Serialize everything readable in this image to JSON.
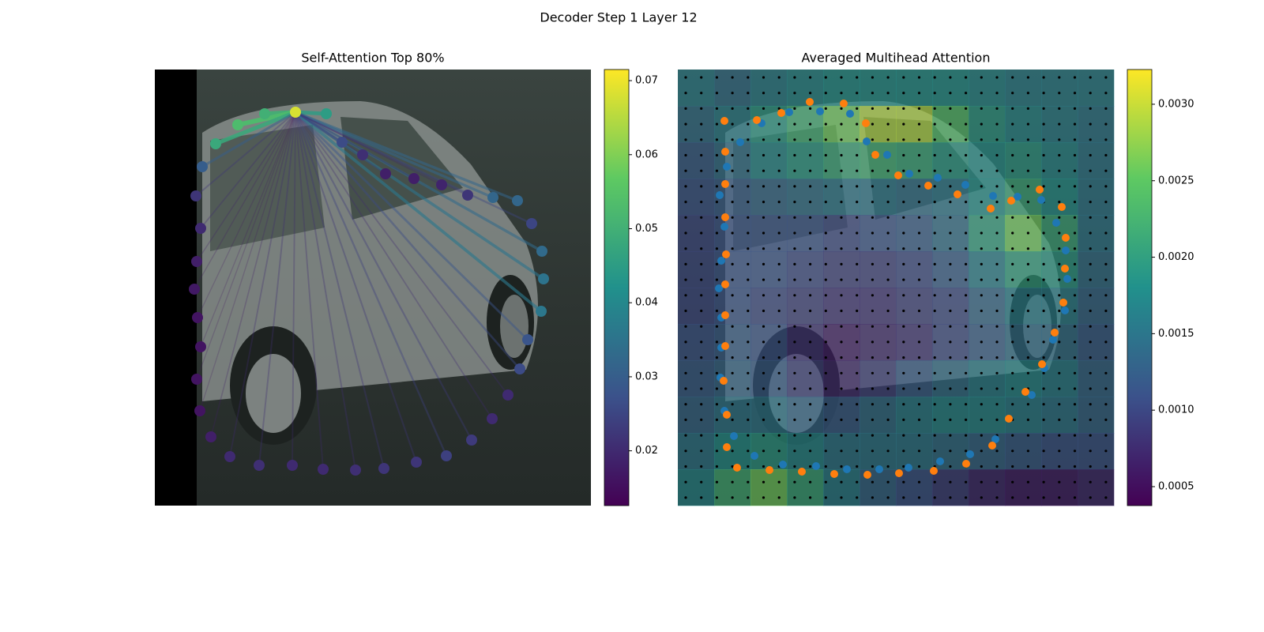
{
  "title": "Decoder Step 1 Layer 12",
  "chart_data": [
    {
      "type": "scatter",
      "title": "Self-Attention Top 80%",
      "xlim": [
        0,
        552
      ],
      "ylim": [
        552,
        0
      ],
      "x": [
        178,
        217,
        139,
        105,
        77,
        60,
        52,
        58,
        53,
        50,
        54,
        58,
        53,
        57,
        71,
        95,
        132,
        174,
        213,
        254,
        290,
        331,
        369,
        401,
        427,
        447,
        462,
        472,
        489,
        492,
        490,
        477,
        459,
        428,
        396,
        363,
        328,
        292,
        263,
        237
      ],
      "values": [
        498,
        496,
        496,
        482,
        458,
        429,
        392,
        351,
        309,
        274,
        238,
        201,
        160,
        120,
        87,
        62,
        51,
        51,
        46,
        45,
        47,
        55,
        63,
        83,
        110,
        140,
        173,
        210,
        246,
        287,
        322,
        357,
        386,
        390,
        393,
        406,
        414,
        420,
        444,
        460
      ],
      "attention": [
        0.068,
        0.045,
        0.05,
        0.053,
        0.048,
        0.03,
        0.022,
        0.02,
        0.018,
        0.017,
        0.016,
        0.016,
        0.016,
        0.016,
        0.018,
        0.02,
        0.021,
        0.02,
        0.02,
        0.021,
        0.022,
        0.022,
        0.024,
        0.023,
        0.02,
        0.02,
        0.026,
        0.028,
        0.036,
        0.035,
        0.033,
        0.025,
        0.032,
        0.032,
        0.022,
        0.019,
        0.018,
        0.018,
        0.021,
        0.026
      ],
      "clim": [
        0.0126,
        0.0715
      ],
      "cticks": [
        0.02,
        0.03,
        0.04,
        0.05,
        0.06,
        0.07
      ]
    },
    {
      "type": "heatmap",
      "title": "Averaged Multihead Attention",
      "xlim": [
        0,
        552
      ],
      "ylim": [
        552,
        0
      ],
      "z": [
        [
          0.0016,
          0.0014,
          0.0016,
          0.0017,
          0.0018,
          0.0018,
          0.0018,
          0.0018,
          0.0017,
          0.0016,
          0.0016,
          0.0016
        ],
        [
          0.0014,
          0.0016,
          0.0019,
          0.0022,
          0.0026,
          0.0029,
          0.0029,
          0.0024,
          0.0019,
          0.0017,
          0.0016,
          0.0015
        ],
        [
          0.0012,
          0.0014,
          0.0017,
          0.0019,
          0.0021,
          0.0022,
          0.0021,
          0.0019,
          0.0018,
          0.0019,
          0.0017,
          0.0015
        ],
        [
          0.0011,
          0.0012,
          0.0013,
          0.0014,
          0.0015,
          0.0015,
          0.0014,
          0.0015,
          0.0018,
          0.0021,
          0.0018,
          0.0015
        ],
        [
          0.001,
          0.0011,
          0.0011,
          0.0011,
          0.001,
          0.0011,
          0.0012,
          0.0014,
          0.002,
          0.0026,
          0.0021,
          0.0015
        ],
        [
          0.001,
          0.0011,
          0.0011,
          0.001,
          0.0009,
          0.0009,
          0.001,
          0.0012,
          0.0016,
          0.002,
          0.0019,
          0.0014
        ],
        [
          0.001,
          0.0011,
          0.001,
          0.0009,
          0.0008,
          0.0008,
          0.0009,
          0.001,
          0.0013,
          0.0016,
          0.0016,
          0.0013
        ],
        [
          0.0011,
          0.0012,
          0.0011,
          0.0008,
          0.0006,
          0.0007,
          0.0008,
          0.001,
          0.0012,
          0.0014,
          0.0014,
          0.0012
        ],
        [
          0.0012,
          0.0013,
          0.0012,
          0.0009,
          0.0007,
          0.0009,
          0.0012,
          0.0014,
          0.0016,
          0.0017,
          0.0016,
          0.0013
        ],
        [
          0.0013,
          0.0015,
          0.0015,
          0.0013,
          0.0012,
          0.0014,
          0.0016,
          0.0017,
          0.0017,
          0.0016,
          0.0015,
          0.0013
        ],
        [
          0.0015,
          0.0018,
          0.0019,
          0.0017,
          0.0015,
          0.0015,
          0.0015,
          0.0014,
          0.0013,
          0.0012,
          0.0011,
          0.0011
        ],
        [
          0.0017,
          0.0022,
          0.0026,
          0.0021,
          0.0016,
          0.0013,
          0.0011,
          0.0009,
          0.0007,
          0.0006,
          0.0006,
          0.0007
        ]
      ],
      "clim": [
        0.000376,
        0.003227
      ],
      "cticks": [
        0.0005,
        {
          "value": 0.001,
          "label": "0.0010"
        },
        0.0015,
        {
          "value": 0.002,
          "label": "0.0020"
        },
        0.0025,
        {
          "value": 0.003,
          "label": "0.0030"
        }
      ],
      "series": [
        {
          "color": "#1f77b4",
          "x": [
            59,
            71,
            97,
            133,
            175,
            214,
            255,
            292,
            332,
            370,
            402,
            448,
            464,
            475,
            490,
            493,
            491,
            479,
            460,
            430,
            399,
            364,
            329,
            293,
            265,
            239,
            218,
            180,
            141,
            106,
            79,
            62,
            53,
            59,
            55,
            52,
            55,
            54,
            55
          ],
          "values": [
            120,
            88,
            63,
            52,
            50,
            46,
            46,
            48,
            56,
            65,
            84,
            140,
            174,
            210,
            247,
            287,
            323,
            358,
            387,
            391,
            392,
            406,
            415,
            420,
            444,
            461,
            496,
            499,
            498,
            484,
            460,
            429,
            393,
            353,
            310,
            275,
            238,
            162,
            200
          ]
        },
        {
          "color": "#ff7f0e",
          "x": [
            75,
            116,
            157,
            198,
            240,
            280,
            324,
            365,
            398,
            419,
            440,
            461,
            477,
            488,
            490,
            491,
            486,
            458,
            422,
            396,
            354,
            317,
            279,
            250,
            238,
            210,
            167,
            131,
            100,
            59,
            60,
            60,
            60,
            61,
            60,
            60,
            60,
            58,
            62,
            62
          ],
          "values": [
            48,
            45,
            43,
            40,
            39,
            41,
            44,
            53,
            76,
            110,
            144,
            179,
            219,
            257,
            300,
            339,
            378,
            400,
            386,
            376,
            394,
            405,
            418,
            444,
            484,
            509,
            511,
            497,
            488,
            487,
            448,
            407,
            365,
            318,
            280,
            241,
            202,
            158,
            115,
            74
          ]
        }
      ]
    }
  ]
}
